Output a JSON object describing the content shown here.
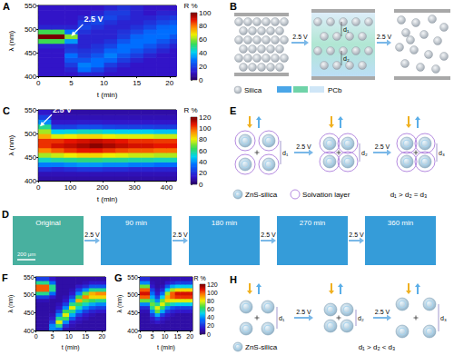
{
  "chart_data": [
    {
      "type": "heatmap",
      "title": "A",
      "x_label": "t (min)",
      "y_label": "λ (nm)",
      "xlim": [
        0,
        21
      ],
      "xticks": [
        0,
        5,
        10,
        15,
        20
      ],
      "ylim": [
        400,
        550
      ],
      "yticks": [
        400,
        450,
        500,
        550
      ],
      "x": [
        1,
        3,
        5,
        7,
        9,
        11,
        13,
        15,
        17,
        19,
        21
      ],
      "y": [
        405,
        415,
        425,
        435,
        445,
        455,
        465,
        475,
        485,
        495,
        505,
        515,
        525,
        535,
        545
      ],
      "cells": [
        [
          12,
          12,
          12,
          15,
          15,
          12,
          12,
          12,
          12,
          12,
          12
        ],
        [
          12,
          12,
          15,
          30,
          22,
          15,
          12,
          12,
          12,
          12,
          12
        ],
        [
          12,
          12,
          20,
          32,
          30,
          20,
          15,
          12,
          12,
          12,
          12
        ],
        [
          12,
          12,
          25,
          25,
          30,
          28,
          20,
          15,
          12,
          12,
          12
        ],
        [
          12,
          12,
          30,
          20,
          25,
          32,
          25,
          20,
          15,
          12,
          12
        ],
        [
          12,
          12,
          20,
          18,
          20,
          28,
          30,
          25,
          20,
          15,
          12
        ],
        [
          15,
          15,
          18,
          15,
          18,
          22,
          30,
          30,
          25,
          20,
          15
        ],
        [
          55,
          55,
          35,
          15,
          15,
          18,
          25,
          30,
          30,
          25,
          20
        ],
        [
          100,
          100,
          60,
          15,
          15,
          15,
          20,
          28,
          30,
          30,
          25
        ],
        [
          55,
          55,
          30,
          18,
          15,
          15,
          18,
          22,
          28,
          30,
          30
        ],
        [
          15,
          15,
          15,
          22,
          18,
          15,
          15,
          18,
          22,
          28,
          30
        ],
        [
          12,
          12,
          12,
          20,
          22,
          18,
          15,
          15,
          18,
          22,
          25
        ],
        [
          12,
          12,
          12,
          15,
          20,
          22,
          18,
          15,
          15,
          18,
          20
        ],
        [
          12,
          12,
          12,
          12,
          15,
          20,
          20,
          15,
          12,
          15,
          15
        ],
        [
          12,
          12,
          12,
          12,
          12,
          15,
          18,
          15,
          12,
          12,
          12
        ]
      ],
      "colorbar": {
        "label": "R %",
        "range": [
          0,
          100
        ],
        "ticks": [
          0,
          20,
          40,
          60,
          80,
          100
        ]
      },
      "annotations": [
        {
          "text": "2.5 V",
          "x": 5,
          "y": 485
        }
      ]
    },
    {
      "type": "heatmap",
      "title": "C",
      "x_label": "t (min)",
      "y_label": "λ (nm)",
      "xlim": [
        0,
        430
      ],
      "xticks": [
        0,
        100,
        200,
        300,
        400
      ],
      "ylim": [
        400,
        550
      ],
      "yticks": [
        400,
        450,
        500,
        550
      ],
      "x": [
        20,
        60,
        100,
        140,
        180,
        220,
        260,
        300,
        340,
        380,
        420
      ],
      "y": [
        405,
        415,
        425,
        435,
        445,
        455,
        465,
        475,
        485,
        495,
        505,
        515,
        525,
        535,
        545
      ],
      "cells": [
        [
          10,
          10,
          10,
          10,
          10,
          10,
          10,
          10,
          10,
          10,
          10
        ],
        [
          12,
          12,
          12,
          12,
          12,
          12,
          12,
          12,
          12,
          12,
          12
        ],
        [
          20,
          18,
          20,
          22,
          22,
          20,
          20,
          18,
          18,
          18,
          18
        ],
        [
          38,
          38,
          40,
          42,
          42,
          40,
          40,
          38,
          38,
          36,
          36
        ],
        [
          55,
          58,
          60,
          62,
          62,
          60,
          60,
          58,
          58,
          56,
          56
        ],
        [
          75,
          78,
          82,
          85,
          85,
          82,
          80,
          78,
          78,
          76,
          76
        ],
        [
          95,
          100,
          105,
          108,
          108,
          105,
          102,
          100,
          100,
          98,
          98
        ],
        [
          105,
          110,
          112,
          115,
          118,
          115,
          112,
          110,
          110,
          108,
          108
        ],
        [
          105,
          105,
          108,
          110,
          112,
          110,
          108,
          105,
          105,
          104,
          104
        ],
        [
          90,
          80,
          82,
          85,
          85,
          82,
          80,
          80,
          80,
          78,
          78
        ],
        [
          75,
          50,
          52,
          55,
          55,
          52,
          50,
          50,
          50,
          48,
          48
        ],
        [
          60,
          25,
          25,
          28,
          28,
          26,
          25,
          25,
          25,
          24,
          24
        ],
        [
          40,
          15,
          15,
          16,
          16,
          15,
          15,
          15,
          15,
          15,
          15
        ],
        [
          25,
          12,
          12,
          12,
          12,
          12,
          12,
          12,
          12,
          12,
          12
        ],
        [
          15,
          10,
          10,
          10,
          10,
          10,
          10,
          10,
          10,
          10,
          10
        ]
      ],
      "colorbar": {
        "label": "R %",
        "range": [
          0,
          120
        ],
        "ticks": [
          0,
          20,
          40,
          60,
          80,
          100,
          120
        ]
      },
      "annotations": [
        {
          "text": "2.5 V",
          "x": 5,
          "y": 515
        }
      ]
    },
    {
      "type": "heatmap",
      "title": "F",
      "x_label": "t (min)",
      "y_label": "λ (nm)",
      "xlim": [
        0,
        21
      ],
      "xticks": [
        0,
        5,
        10,
        15,
        20
      ],
      "ylim": [
        400,
        550
      ],
      "yticks": [
        400,
        450,
        500,
        550
      ],
      "x": [
        1,
        3,
        5,
        7,
        9,
        11,
        13,
        15,
        17,
        19,
        21
      ],
      "y": [
        405,
        415,
        425,
        435,
        445,
        455,
        465,
        475,
        485,
        495,
        505,
        515,
        525,
        535,
        545
      ],
      "cells": [
        [
          10,
          10,
          40,
          35,
          12,
          10,
          10,
          10,
          10,
          10,
          10
        ],
        [
          10,
          10,
          40,
          60,
          20,
          12,
          10,
          10,
          10,
          10,
          10
        ],
        [
          10,
          10,
          25,
          80,
          40,
          15,
          12,
          10,
          10,
          10,
          10
        ],
        [
          10,
          10,
          15,
          60,
          65,
          30,
          15,
          12,
          10,
          10,
          10
        ],
        [
          10,
          10,
          12,
          40,
          80,
          45,
          25,
          15,
          12,
          10,
          10
        ],
        [
          10,
          10,
          10,
          25,
          65,
          60,
          40,
          25,
          18,
          15,
          15
        ],
        [
          10,
          10,
          10,
          15,
          40,
          80,
          55,
          40,
          30,
          25,
          25
        ],
        [
          10,
          10,
          10,
          12,
          25,
          60,
          65,
          55,
          45,
          40,
          40
        ],
        [
          12,
          12,
          10,
          10,
          15,
          40,
          90,
          70,
          65,
          60,
          60
        ],
        [
          25,
          25,
          15,
          10,
          12,
          25,
          65,
          95,
          85,
          85,
          85
        ],
        [
          60,
          60,
          35,
          10,
          10,
          15,
          40,
          70,
          90,
          95,
          95
        ],
        [
          100,
          100,
          60,
          10,
          10,
          12,
          25,
          40,
          60,
          60,
          60
        ],
        [
          100,
          100,
          60,
          10,
          10,
          10,
          15,
          20,
          30,
          30,
          30
        ],
        [
          60,
          60,
          35,
          10,
          10,
          10,
          10,
          12,
          15,
          15,
          15
        ],
        [
          25,
          25,
          15,
          10,
          10,
          10,
          10,
          10,
          10,
          10,
          10
        ]
      ],
      "colorbar": {
        "range": [
          0,
          120
        ]
      }
    },
    {
      "type": "heatmap",
      "title": "G",
      "x_label": "t (min)",
      "y_label": "λ (nm)",
      "xlim": [
        0,
        21
      ],
      "xticks": [
        0,
        5,
        10,
        15,
        20
      ],
      "ylim": [
        400,
        550
      ],
      "yticks": [
        400,
        450,
        500,
        550
      ],
      "x": [
        1,
        3,
        5,
        7,
        9,
        11,
        13,
        15,
        17,
        19,
        21
      ],
      "y": [
        405,
        415,
        425,
        435,
        445,
        455,
        465,
        475,
        485,
        495,
        505,
        515,
        525,
        535,
        545
      ],
      "cells": [
        [
          10,
          10,
          10,
          10,
          10,
          10,
          10,
          10,
          10,
          10,
          10
        ],
        [
          10,
          10,
          10,
          10,
          10,
          10,
          10,
          10,
          10,
          10,
          10
        ],
        [
          10,
          10,
          12,
          15,
          12,
          10,
          10,
          10,
          10,
          10,
          10
        ],
        [
          10,
          10,
          15,
          25,
          15,
          12,
          10,
          10,
          10,
          10,
          10
        ],
        [
          10,
          10,
          25,
          45,
          25,
          15,
          12,
          10,
          10,
          10,
          10
        ],
        [
          12,
          12,
          40,
          70,
          45,
          25,
          18,
          15,
          15,
          15,
          15
        ],
        [
          20,
          20,
          60,
          80,
          65,
          40,
          30,
          25,
          25,
          25,
          25
        ],
        [
          40,
          40,
          70,
          60,
          80,
          65,
          55,
          50,
          50,
          50,
          50
        ],
        [
          70,
          70,
          60,
          40,
          70,
          85,
          80,
          80,
          80,
          80,
          80
        ],
        [
          100,
          100,
          45,
          25,
          50,
          90,
          100,
          105,
          105,
          105,
          105
        ],
        [
          110,
          110,
          35,
          15,
          35,
          75,
          100,
          110,
          110,
          110,
          110
        ],
        [
          100,
          100,
          25,
          12,
          20,
          50,
          75,
          85,
          85,
          85,
          85
        ],
        [
          70,
          70,
          15,
          10,
          12,
          30,
          45,
          50,
          50,
          50,
          50
        ],
        [
          40,
          40,
          12,
          10,
          10,
          15,
          20,
          25,
          25,
          25,
          25
        ],
        [
          20,
          20,
          10,
          10,
          10,
          10,
          12,
          12,
          12,
          12,
          12
        ]
      ],
      "colorbar": {
        "label": "R %",
        "range": [
          0,
          120
        ],
        "ticks": [
          0,
          20,
          40,
          60,
          80,
          100,
          120
        ]
      }
    }
  ],
  "diagrams": {
    "B": {
      "title": "B",
      "voltage": [
        "2.5 V",
        "2.5 V"
      ],
      "distances": [
        "d₁",
        "d₂"
      ],
      "legend": {
        "particle": "Silica",
        "layer": "PCb"
      }
    },
    "E": {
      "title": "E",
      "voltage": [
        "2.5 V",
        "2.5 V"
      ],
      "distances": [
        "d₁",
        "d₂",
        "d₃"
      ],
      "relation": "d₁ > d₂ = d₃",
      "legend": {
        "particle": "ZnS-silica",
        "layer": "Solvation layer"
      }
    },
    "D": {
      "title": "D",
      "images": [
        "Original",
        "90 min",
        "180 min",
        "270 min",
        "360 min"
      ],
      "voltage": [
        "2.5 V",
        "2.5 V",
        "2.5 V",
        "2.5 V"
      ],
      "scale_bar": "200 μm"
    },
    "H": {
      "title": "H",
      "voltage": [
        "2.5 V",
        "2.5 V"
      ],
      "distances": [
        "d₁",
        "d₂",
        "d₃"
      ],
      "relation": "d₁ > d₂ < d₃",
      "legend": {
        "particle": "ZnS-silica"
      }
    }
  }
}
